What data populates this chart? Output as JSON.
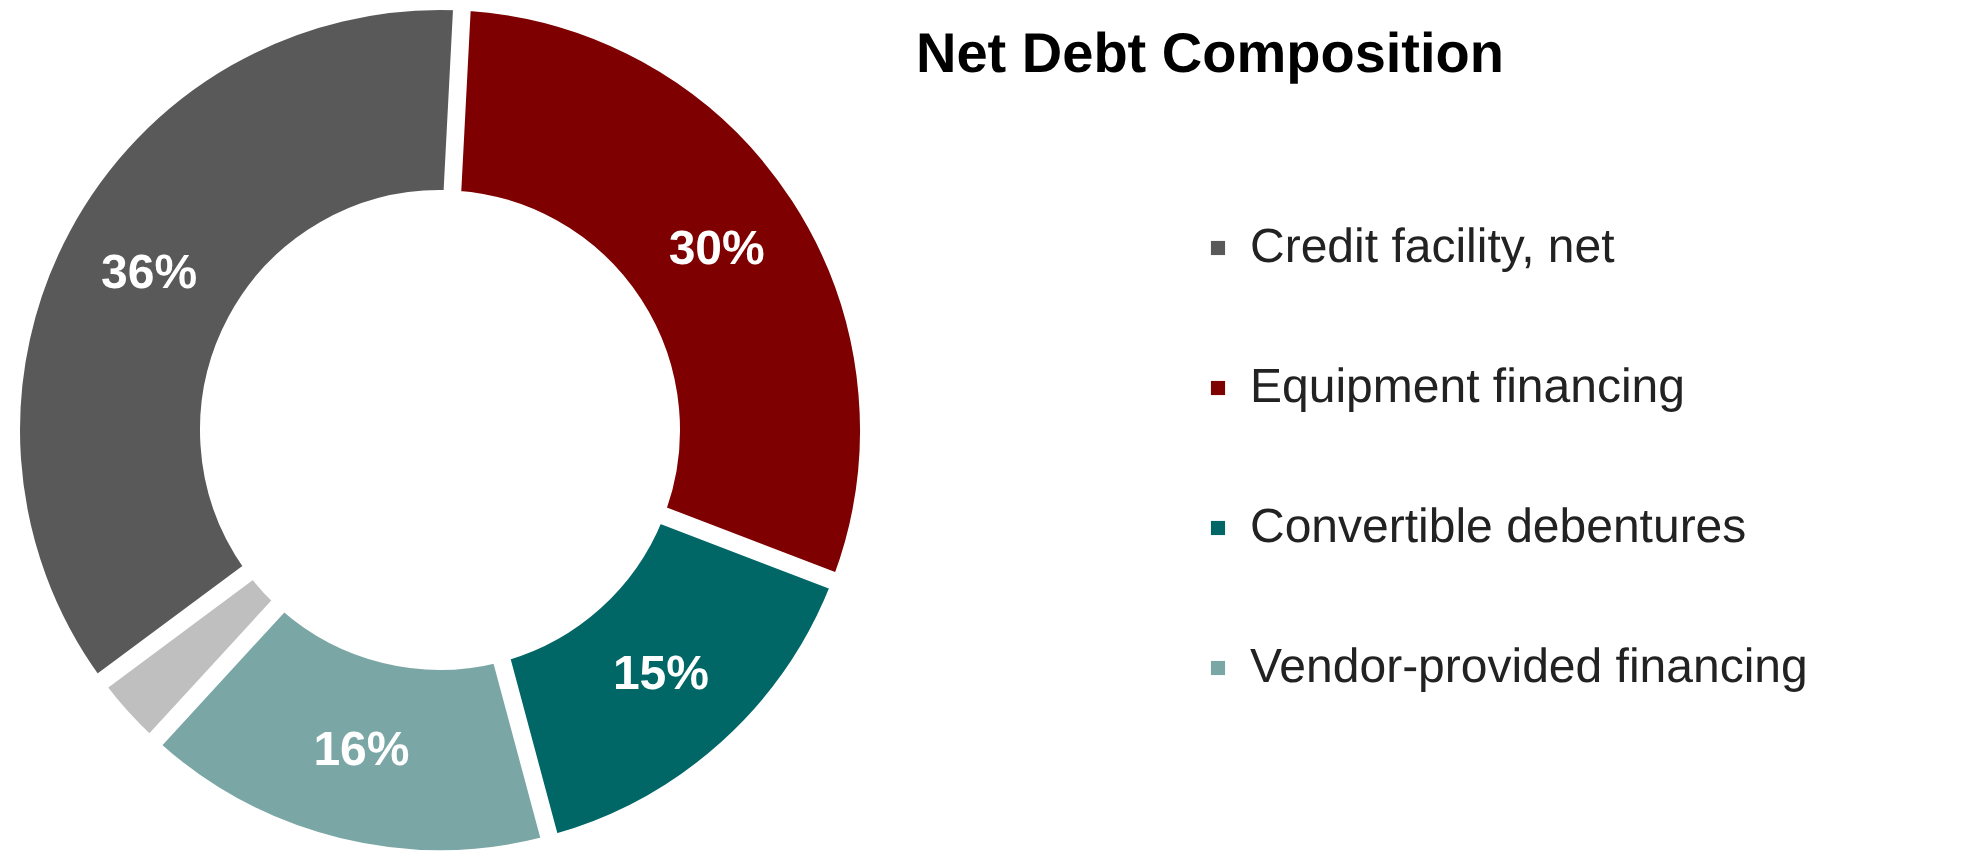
{
  "chart_data": {
    "type": "donut",
    "title": "Net Debt Composition",
    "categories": [
      "Credit facility, net",
      "Equipment financing",
      "Convertible debentures",
      "Vendor-provided financing",
      null
    ],
    "values": [
      36,
      30,
      15,
      16,
      3
    ],
    "colors": [
      "#595959",
      "#7f0000",
      "#006666",
      "#7aa7a6",
      "#bfbfbf"
    ],
    "value_labels": [
      "36%",
      "30%",
      "15%",
      "16%",
      null
    ],
    "legend": "right"
  }
}
